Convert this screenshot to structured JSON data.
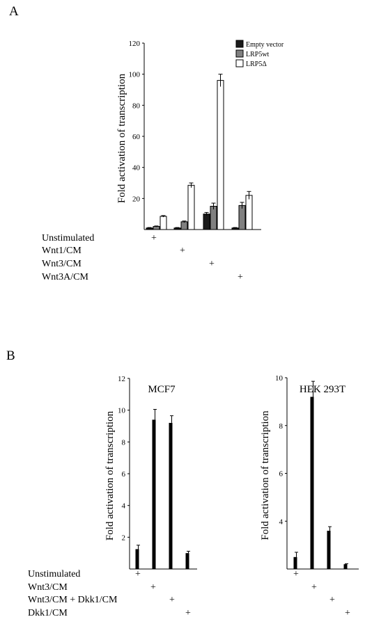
{
  "panels": {
    "A": {
      "letter": "A"
    },
    "B": {
      "letter": "B"
    }
  },
  "chart_data": [
    {
      "type": "bar",
      "panel": "A",
      "title": "",
      "ylabel": "Fold activation of transcription",
      "ylim": [
        0,
        120
      ],
      "yticks": [
        20,
        40,
        60,
        80,
        100,
        120
      ],
      "categories": [
        "Unstimulated",
        "Wnt1/CM",
        "Wnt3/CM",
        "Wnt3A/CM"
      ],
      "condition_mark": "+",
      "legend_position": "top-right",
      "series": [
        {
          "name": "Empty vector",
          "color": "#1a1a1a",
          "values": [
            1,
            1,
            10,
            1
          ],
          "errors": [
            0.3,
            0.3,
            1,
            0.3
          ]
        },
        {
          "name": "LRP5wt",
          "color": "#808080",
          "values": [
            2,
            5,
            15,
            15.5
          ],
          "errors": [
            0.3,
            0.5,
            2,
            2
          ]
        },
        {
          "name": "LRP5Δ",
          "color": "#ffffff",
          "values": [
            8.5,
            28.5,
            96,
            22
          ],
          "errors": [
            0.5,
            1.5,
            4,
            2.5
          ]
        }
      ]
    },
    {
      "type": "bar",
      "panel": "B",
      "title": "MCF7",
      "ylabel": "Fold activation of transcription",
      "ylim": [
        0,
        12
      ],
      "yticks": [
        2,
        4,
        6,
        8,
        10,
        12
      ],
      "categories": [
        "Unstimulated",
        "Wnt3/CM",
        "Wnt3/CM + Dkk1/CM",
        "Dkk1/CM"
      ],
      "condition_mark": "+",
      "series": [
        {
          "color": "#000000",
          "values": [
            1.25,
            9.4,
            9.2,
            1.0
          ],
          "errors": [
            0.25,
            0.65,
            0.45,
            0.12
          ]
        }
      ]
    },
    {
      "type": "bar",
      "panel": "B",
      "title": "HEK 293T",
      "ylabel": "Fold activation of transcription",
      "ylim": [
        2,
        10
      ],
      "yticks": [
        4,
        6,
        8,
        10
      ],
      "categories": [
        "Unstimulated",
        "Wnt3/CM",
        "Wnt3/CM + Dkk1/CM",
        "Dkk1/CM"
      ],
      "condition_mark": "+",
      "series": [
        {
          "color": "#000000",
          "values": [
            2.5,
            9.2,
            3.6,
            2.2
          ],
          "errors": [
            0.2,
            0.65,
            0.17,
            0.02
          ]
        }
      ]
    }
  ]
}
